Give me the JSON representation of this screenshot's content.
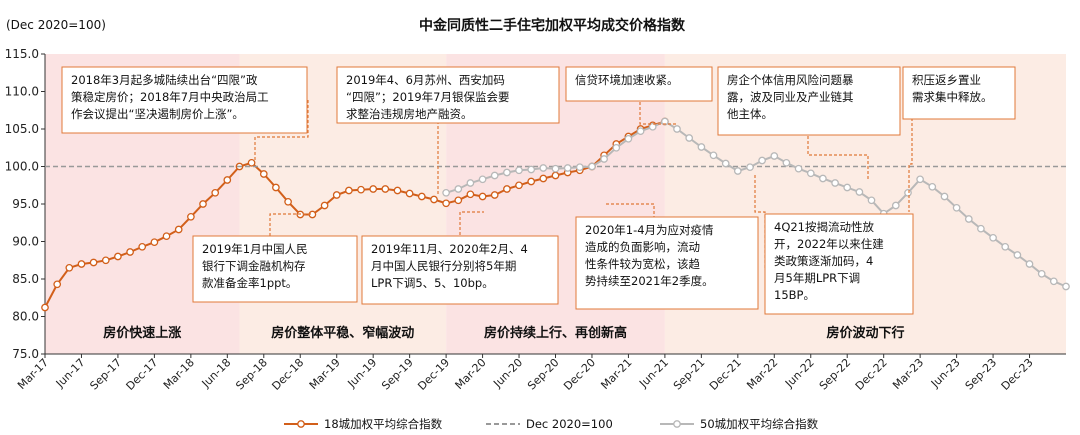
{
  "header": {
    "unit_label": "(Dec 2020=100)",
    "title": "中金同质性二手住宅加权平均成交价格指数"
  },
  "colors": {
    "series18": "#d25f1a",
    "series50": "#b8b8b8",
    "baseline": "#999999",
    "annotation_border": "#e08040",
    "band_pink": "#fbe3e3",
    "band_peach": "#fcece4"
  },
  "chart_data": {
    "type": "line",
    "title": "中金同质性二手住宅加权平均成交价格指数",
    "ylabel": "(Dec 2020=100)",
    "ylim": [
      75,
      115
    ],
    "yticks": [
      "75.0",
      "80.0",
      "85.0",
      "90.0",
      "95.0",
      "100.0",
      "105.0",
      "110.0",
      "115.0"
    ],
    "x_start": "Mar-17",
    "x_end": "Mar-24",
    "xticks": [
      "Mar-17",
      "Jun-17",
      "Sep-17",
      "Dec-17",
      "Mar-18",
      "Jun-18",
      "Sep-18",
      "Dec-18",
      "Mar-19",
      "Jun-19",
      "Sep-19",
      "Dec-19",
      "Mar-20",
      "Jun-20",
      "Sep-20",
      "Dec-20",
      "Mar-21",
      "Jun-21",
      "Sep-21",
      "Dec-21",
      "Mar-22",
      "Jun-22",
      "Sep-22",
      "Dec-22",
      "Mar-23",
      "Jun-23",
      "Sep-23",
      "Dec-23"
    ],
    "grid": false,
    "legend_position": "bottom",
    "series": [
      {
        "name": "18城加权平均综合指数",
        "x": [
          "2017-03",
          "2017-04",
          "2017-05",
          "2017-06",
          "2017-07",
          "2017-08",
          "2017-09",
          "2017-10",
          "2017-11",
          "2017-12",
          "2018-01",
          "2018-02",
          "2018-03",
          "2018-04",
          "2018-05",
          "2018-06",
          "2018-07",
          "2018-08",
          "2018-09",
          "2018-10",
          "2018-11",
          "2018-12",
          "2019-01",
          "2019-02",
          "2019-03",
          "2019-04",
          "2019-05",
          "2019-06",
          "2019-07",
          "2019-08",
          "2019-09",
          "2019-10",
          "2019-11",
          "2019-12",
          "2020-01",
          "2020-02",
          "2020-03",
          "2020-04",
          "2020-05",
          "2020-06",
          "2020-07",
          "2020-08",
          "2020-09",
          "2020-10",
          "2020-11",
          "2020-12",
          "2021-01",
          "2021-02",
          "2021-03",
          "2021-04",
          "2021-05",
          "2021-06"
        ],
        "y": [
          81.2,
          84.3,
          86.5,
          87.0,
          87.2,
          87.5,
          88.0,
          88.6,
          89.3,
          89.9,
          90.7,
          91.6,
          93.3,
          95.0,
          96.5,
          98.2,
          100.0,
          100.5,
          99.0,
          97.2,
          95.3,
          93.6,
          93.6,
          94.8,
          96.2,
          96.8,
          96.9,
          97.0,
          97.0,
          96.8,
          96.4,
          96.0,
          95.6,
          95.1,
          95.5,
          96.3,
          96.0,
          96.2,
          97.0,
          97.5,
          98.0,
          98.4,
          98.8,
          99.2,
          99.5,
          100.0,
          101.5,
          103.0,
          104.0,
          105.0,
          105.5,
          106.0
        ],
        "line_style": "solid",
        "color": "#d25f1a"
      },
      {
        "name": "Dec 2020=100",
        "x": [
          "2017-03",
          "2024-03"
        ],
        "y": [
          100,
          100
        ],
        "line_style": "dashed",
        "color": "#999999"
      },
      {
        "name": "50城加权平均综合指数",
        "x": [
          "2019-12",
          "2020-01",
          "2020-02",
          "2020-03",
          "2020-04",
          "2020-05",
          "2020-06",
          "2020-07",
          "2020-08",
          "2020-09",
          "2020-10",
          "2020-11",
          "2020-12",
          "2021-01",
          "2021-02",
          "2021-03",
          "2021-04",
          "2021-05",
          "2021-06",
          "2021-07",
          "2021-08",
          "2021-09",
          "2021-10",
          "2021-11",
          "2021-12",
          "2022-01",
          "2022-02",
          "2022-03",
          "2022-04",
          "2022-05",
          "2022-06",
          "2022-07",
          "2022-08",
          "2022-09",
          "2022-10",
          "2022-11",
          "2022-12",
          "2023-01",
          "2023-02",
          "2023-03",
          "2023-04",
          "2023-05",
          "2023-06",
          "2023-07",
          "2023-08",
          "2023-09",
          "2023-10",
          "2023-11",
          "2023-12",
          "2024-01",
          "2024-02",
          "2024-03"
        ],
        "y": [
          96.5,
          97.0,
          97.8,
          98.3,
          98.8,
          99.2,
          99.5,
          99.6,
          99.8,
          99.7,
          99.8,
          99.9,
          100.0,
          101.0,
          102.5,
          103.7,
          104.7,
          105.3,
          106.0,
          105.0,
          103.8,
          102.6,
          101.5,
          100.4,
          99.4,
          99.9,
          100.8,
          101.4,
          100.5,
          99.7,
          99.1,
          98.4,
          97.8,
          97.2,
          96.6,
          95.5,
          93.7,
          94.8,
          96.5,
          98.3,
          97.3,
          96.0,
          94.5,
          93.0,
          91.7,
          90.5,
          89.3,
          88.2,
          87.0,
          85.7,
          84.7,
          84.0
        ],
        "line_style": "solid",
        "color": "#b8b8b8"
      }
    ],
    "phases": [
      {
        "label": "房价快速上涨",
        "start": "2017-03",
        "end": "2018-07",
        "color": "#fbe3e3"
      },
      {
        "label": "房价整体平稳、窄幅波动",
        "start": "2018-07",
        "end": "2019-12",
        "color": "#fcece4"
      },
      {
        "label": "房价持续上行、再创新高",
        "start": "2019-12",
        "end": "2021-06",
        "color": "#fbe3e3"
      },
      {
        "label": "房价波动下行",
        "start": "2021-06",
        "end": "2024-03",
        "color": "#fcece4"
      }
    ],
    "annotations": [
      {
        "lines": [
          "2018年3月起多城陆续出台“四限”政",
          "策稳定房价；2018年7月中央政治局工",
          "作会议提出“坚决遏制房价上涨”。"
        ]
      },
      {
        "lines": [
          "2019年4、6月苏州、西安加码",
          "“四限”；2019年7月银保监会要",
          "求整治违规房地产融资。"
        ]
      },
      {
        "lines": [
          "信贷环境加速收紧。"
        ]
      },
      {
        "lines": [
          "房企个体信用风险问题暴",
          "露，波及同业及产业链其",
          "他主体。"
        ]
      },
      {
        "lines": [
          "积压返乡置业",
          "需求集中释放。"
        ]
      },
      {
        "lines": [
          "2019年1月中国人民",
          "银行下调金融机构存",
          "款准备金率1ppt。"
        ]
      },
      {
        "lines": [
          "2019年11月、2020年2月、4",
          "月中国人民银行分别将5年期",
          "LPR下调5、5、10bp。"
        ]
      },
      {
        "lines": [
          "2020年1-4月为应对疫情",
          "造成的负面影响，流动",
          "性条件较为宽松，该趋",
          "势持续至2021年2季度。"
        ]
      },
      {
        "lines": [
          "4Q21按揭流动性放",
          "开，2022年以来住建",
          "类政策逐渐加码，4",
          "月5年期LPR下调",
          "15BP。"
        ]
      }
    ]
  }
}
